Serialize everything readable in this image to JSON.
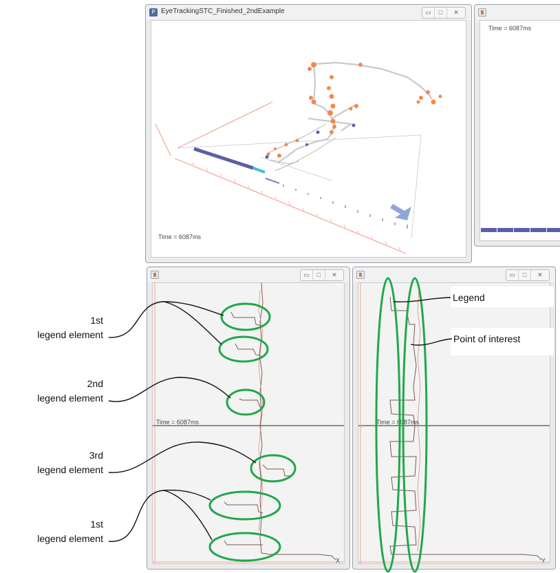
{
  "main_window": {
    "title": "EyeTrackingSTC_Finished_2ndExample",
    "icon": "processing-app-icon",
    "time_label": "Time = 6087ms"
  },
  "side_window": {
    "icon": "java-app-icon",
    "time_label": "Time = 6087ms"
  },
  "x_window": {
    "icon": "java-app-icon",
    "time_label": "Time = 6087ms",
    "axis_label": "X"
  },
  "y_window": {
    "icon": "java-app-icon",
    "time_label": "Time = 6087ms",
    "axis_label": "Y"
  },
  "window_controls": {
    "minimize": "▭",
    "maximize": "□",
    "close": "✕"
  },
  "annotations": {
    "left": [
      {
        "line1": "1st",
        "line2": "legend element"
      },
      {
        "line1": "2nd",
        "line2": "legend element"
      },
      {
        "line1": "3rd",
        "line2": "legend element"
      },
      {
        "line1": "1st",
        "line2": "legend element"
      }
    ],
    "right": [
      {
        "label": "Legend"
      },
      {
        "label": "Point of interest"
      }
    ]
  },
  "colors": {
    "highlight": "#1fa84a",
    "point": "#f28a4e",
    "bar": "#5b5fa8",
    "bar_end": "#40c0c8",
    "trace": "#9b7060",
    "axis": "#f0a090"
  }
}
